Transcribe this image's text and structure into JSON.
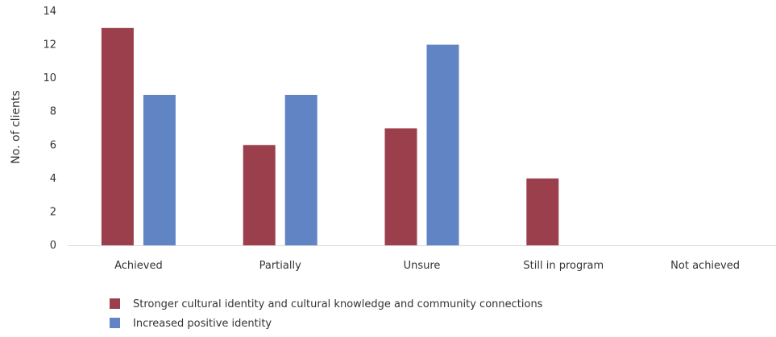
{
  "chart_data": {
    "type": "bar",
    "title": "",
    "xlabel": "",
    "ylabel": "No. of clients",
    "ylim": [
      0,
      14
    ],
    "yticks": [
      0,
      2,
      4,
      6,
      8,
      10,
      12,
      14
    ],
    "grid": false,
    "legend_position": "bottom-left",
    "categories": [
      "Achieved",
      "Partially",
      "Unsure",
      "Still in program",
      "Not achieved"
    ],
    "series": [
      {
        "name": "Stronger cultural identity and cultural knowledge and community connections",
        "color": "#9b3f4d",
        "values": [
          13,
          6,
          7,
          4,
          0
        ]
      },
      {
        "name": "Increased positive identity",
        "color": "#6084c4",
        "values": [
          9,
          9,
          12,
          0,
          0
        ]
      }
    ]
  }
}
